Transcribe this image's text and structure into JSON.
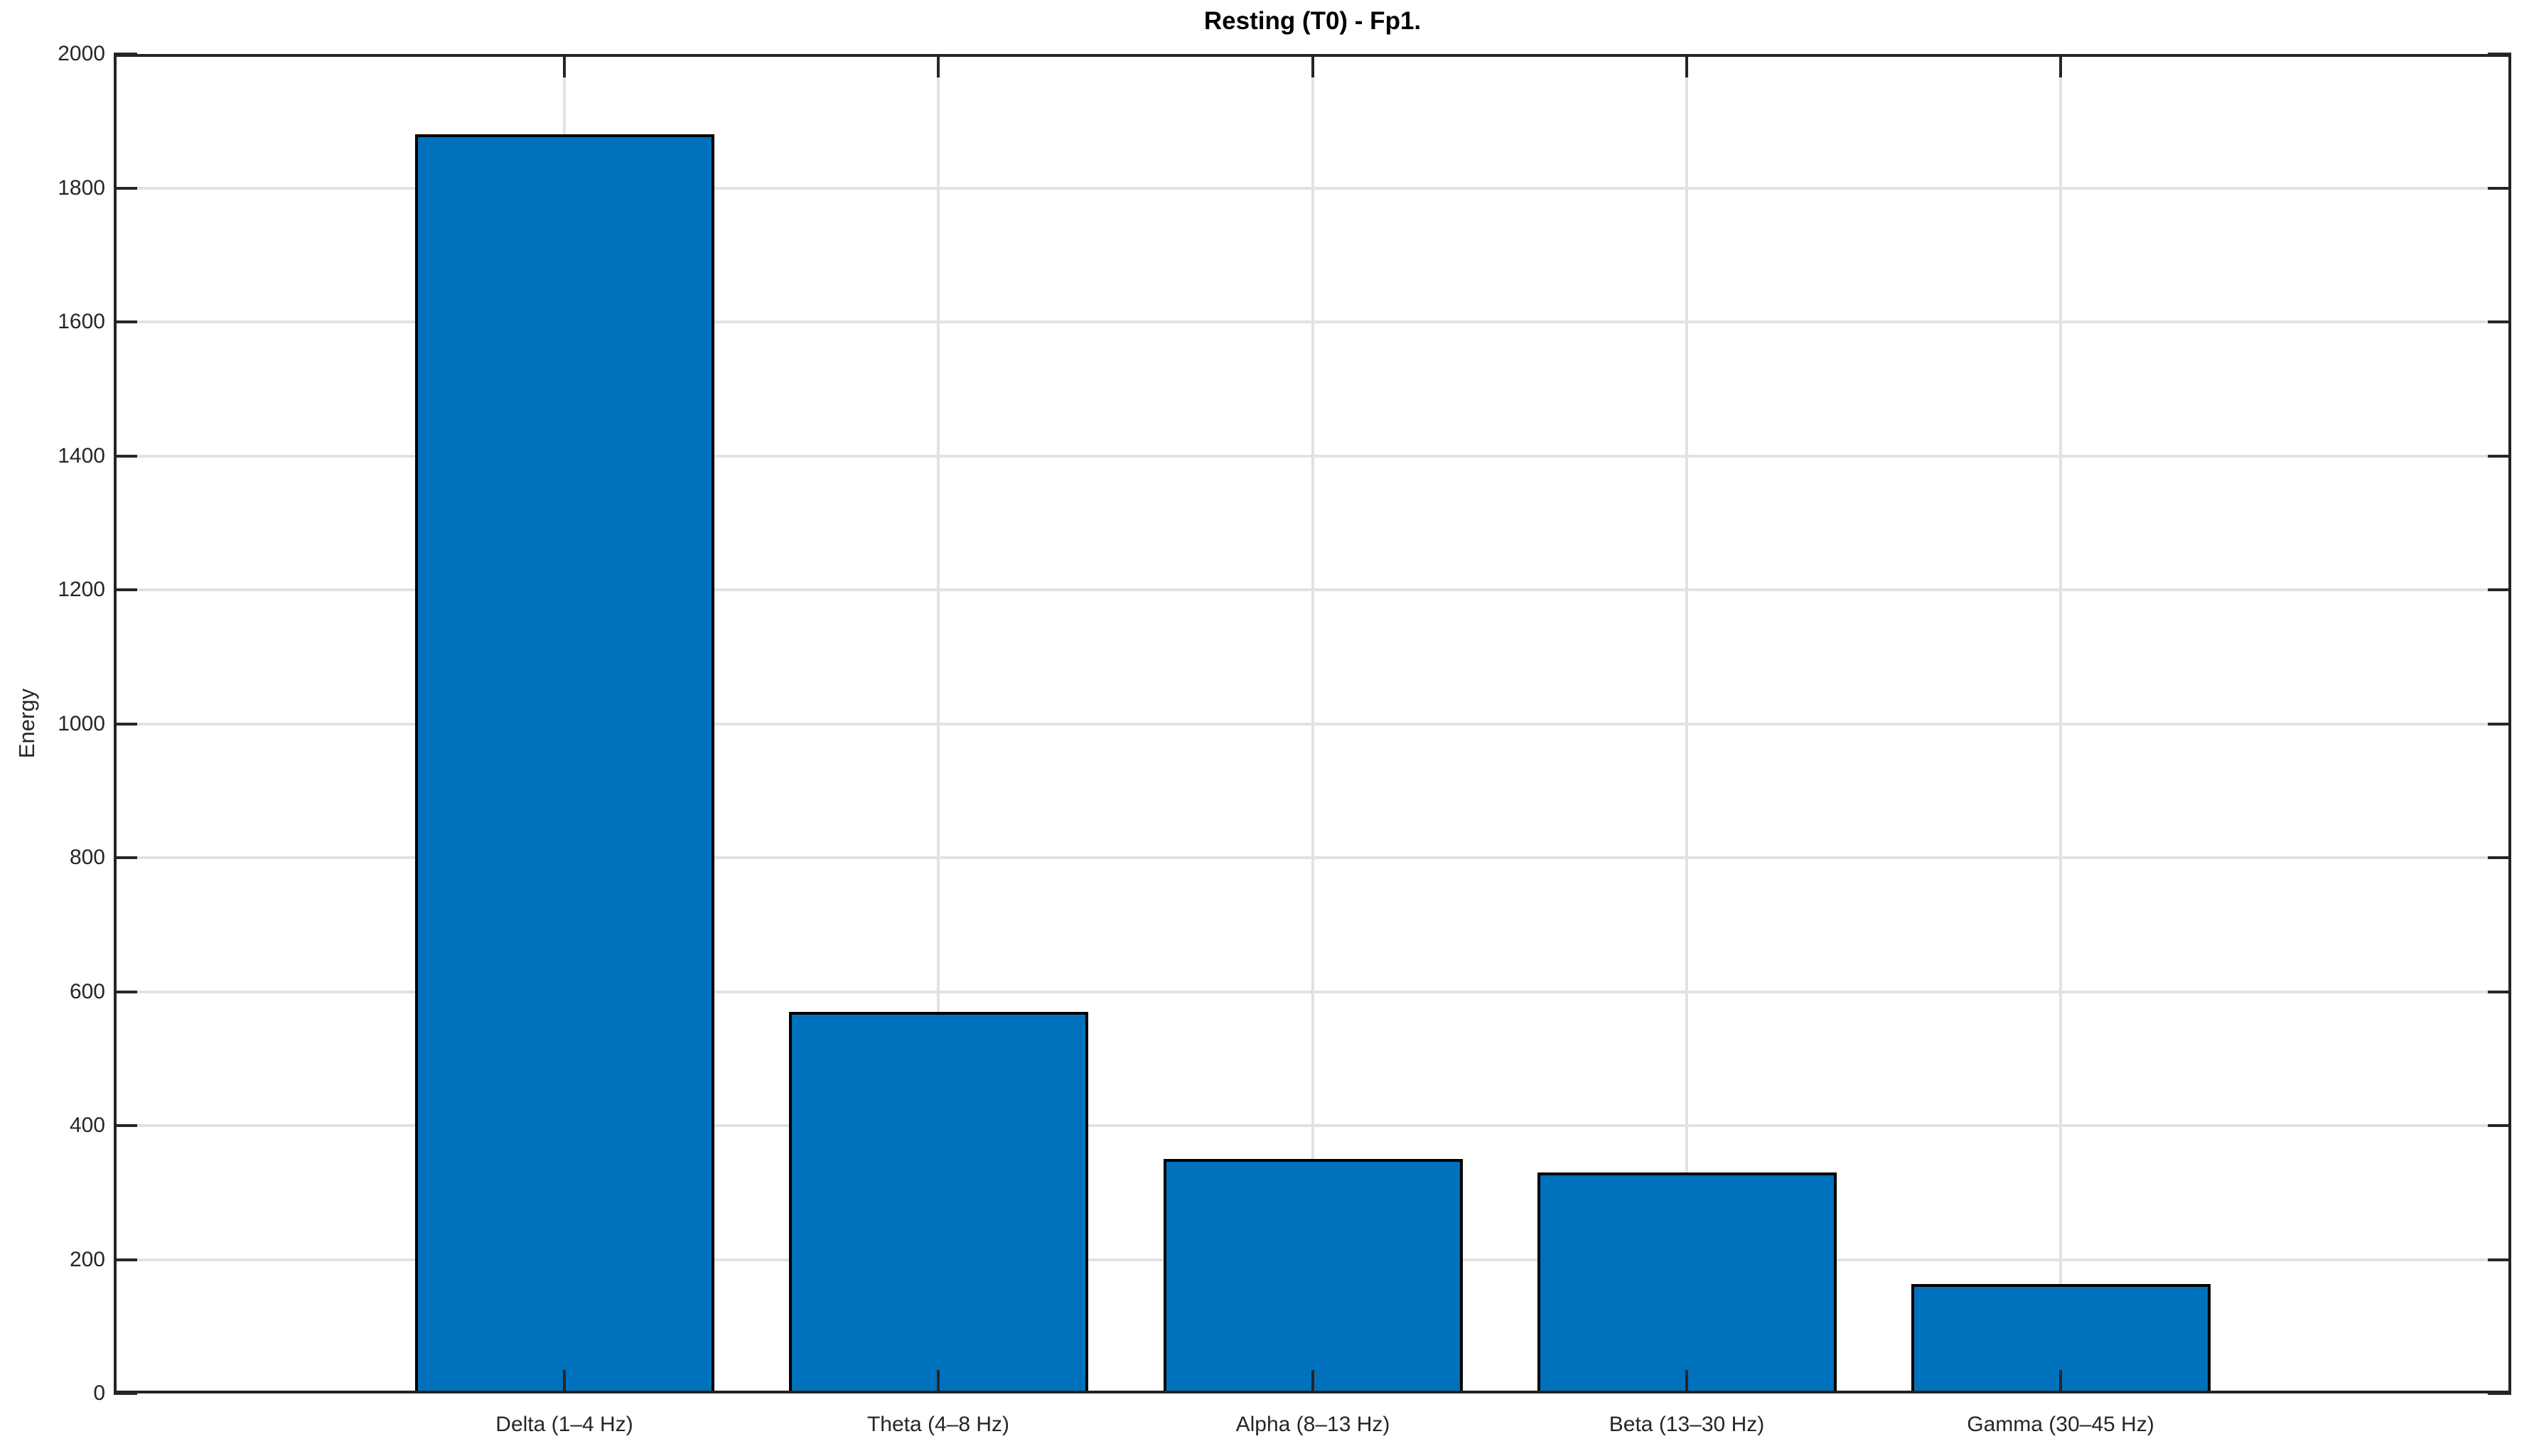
{
  "window": {
    "background": "#ffffff"
  },
  "chart_data": {
    "type": "bar",
    "title": "Resting (T0) - Fp1.",
    "categories": [
      "Delta (1–4 Hz)",
      "Theta (4–8 Hz)",
      "Alpha (8–13 Hz)",
      "Beta (13–30 Hz)",
      "Gamma (30–45 Hz)"
    ],
    "values": [
      1880,
      570,
      350,
      330,
      163
    ],
    "xlabel": "",
    "ylabel": "Energy",
    "ylim": [
      0,
      2000
    ],
    "yticks": [
      0,
      200,
      400,
      600,
      800,
      1000,
      1200,
      1400,
      1600,
      1800,
      2000
    ],
    "grid": true,
    "legend": "none",
    "bar_color": "#0072BD",
    "bar_edge_color": "#000000",
    "grid_color": "#E2E2E2",
    "axis_color": "#262626",
    "title_color": "#000000"
  }
}
